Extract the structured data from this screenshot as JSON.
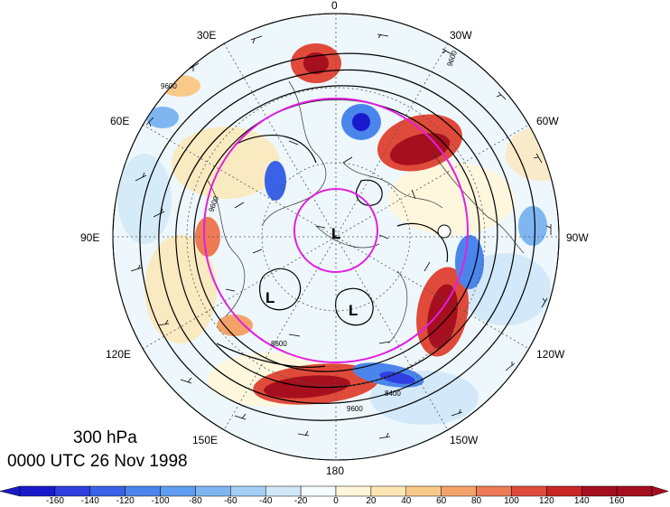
{
  "title": {
    "level": "300 hPa",
    "datetime": "0000 UTC 26 Nov 1998"
  },
  "longitude_labels": {
    "top": "0",
    "top_right": "30W",
    "right_upper": "60W",
    "right": "90W",
    "right_lower": "120W",
    "bottom_right": "150W",
    "bottom": "180",
    "bottom_left": "150E",
    "left_lower": "120E",
    "left": "90E",
    "left_upper": "60E",
    "top_left": "30E"
  },
  "contour_labels": [
    "9600",
    "9600",
    "9600",
    "8400",
    "8600",
    "9600"
  ],
  "pressure_centers": [
    "L",
    "L",
    "L"
  ],
  "colorbar": {
    "ticks": [
      "-160",
      "-140",
      "-120",
      "-100",
      "-80",
      "-60",
      "-40",
      "-20",
      "0",
      "20",
      "40",
      "60",
      "80",
      "100",
      "120",
      "140",
      "160"
    ],
    "colors": [
      "#1a1acc",
      "#2f3fe0",
      "#3a62e6",
      "#4a85ec",
      "#5f9df0",
      "#7fb6f2",
      "#a4cff5",
      "#cfe7f8",
      "#f3fbfe",
      "#fff6da",
      "#fde6b3",
      "#f9c98a",
      "#f3a36a",
      "#ec7a55",
      "#e04a3b",
      "#c92626",
      "#a50f1e"
    ]
  }
}
